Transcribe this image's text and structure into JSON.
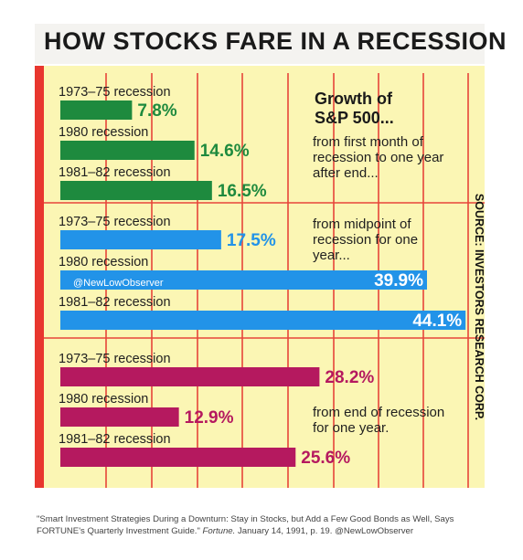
{
  "title": "HOW STOCKS FARE IN A RECESSION",
  "source_note": "SOURCE: INVESTORS RESEARCH CORP.",
  "watermark": "@NewLowObserver",
  "citation": {
    "text": "\"Smart Investment Strategies During a Downturn: Stay in Stocks, but Add a Few Good Bonds as Well, Says FORTUNE's Quarterly Investment Guide.\"",
    "publication": "Fortune.",
    "details": "January 14, 1991, p. 19. @NewLowObserver"
  },
  "chart_data": {
    "type": "bar",
    "orientation": "horizontal",
    "heading": "Growth of S&P 500...",
    "heading_lines": [
      "Growth of",
      "S&P 500..."
    ],
    "x_unit": "%",
    "xlim": [
      0,
      45
    ],
    "grid": true,
    "groups": [
      {
        "description_lines": [
          "from first month of",
          "recession to one year",
          "after end..."
        ],
        "color": "#1e8a3e",
        "bars": [
          {
            "label": "1973–75 recession",
            "value": 7.8,
            "value_label": "7.8%"
          },
          {
            "label": "1980 recession",
            "value": 14.6,
            "value_label": "14.6%"
          },
          {
            "label": "1981–82 recession",
            "value": 16.5,
            "value_label": "16.5%"
          }
        ]
      },
      {
        "description_lines": [
          "from midpoint of",
          "recession for one",
          "year..."
        ],
        "color": "#2293e8",
        "bars": [
          {
            "label": "1973–75 recession",
            "value": 17.5,
            "value_label": "17.5%"
          },
          {
            "label": "1980 recession",
            "value": 39.9,
            "value_label": "39.9%"
          },
          {
            "label": "1981–82 recession",
            "value": 44.1,
            "value_label": "44.1%"
          }
        ]
      },
      {
        "description_lines": [
          "from end of recession",
          "for one year."
        ],
        "color": "#b5195f",
        "bars": [
          {
            "label": "1973–75 recession",
            "value": 28.2,
            "value_label": "28.2%"
          },
          {
            "label": "1980 recession",
            "value": 12.9,
            "value_label": "12.9%"
          },
          {
            "label": "1981–82 recession",
            "value": 25.6,
            "value_label": "25.6%"
          }
        ]
      }
    ]
  }
}
